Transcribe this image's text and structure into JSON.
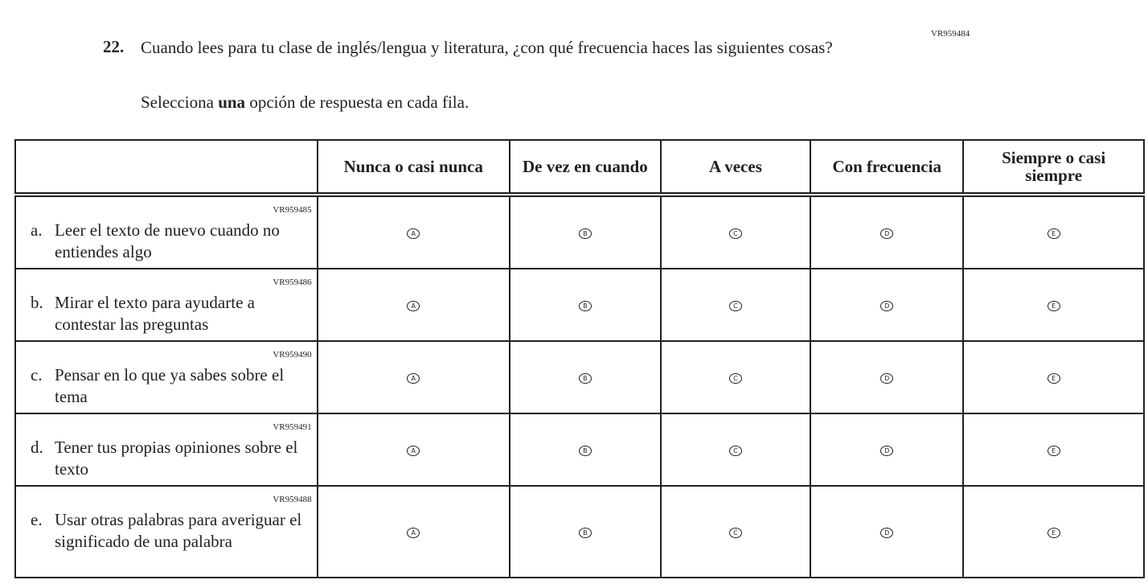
{
  "question": {
    "id": "VR959484",
    "number": "22.",
    "text": "Cuando lees para tu clase de inglés/lengua y literatura, ¿con qué frecuencia haces las siguientes cosas?",
    "instruction_pre": "Selecciona ",
    "instruction_bold": "una",
    "instruction_post": " opción de respuesta en cada fila."
  },
  "columns": [
    "Nunca o casi nunca",
    "De vez en cuando",
    "A veces",
    "Con frecuencia",
    "Siempre o casi siempre"
  ],
  "option_letters": [
    "A",
    "B",
    "C",
    "D",
    "E"
  ],
  "rows": [
    {
      "id": "VR959485",
      "letter": "a.",
      "text": "Leer el texto de nuevo cuando no entiendes algo"
    },
    {
      "id": "VR959486",
      "letter": "b.",
      "text": "Mirar el texto para ayudarte a contestar las preguntas"
    },
    {
      "id": "VR959490",
      "letter": "c.",
      "text": "Pensar en lo que ya sabes sobre el tema"
    },
    {
      "id": "VR959491",
      "letter": "d.",
      "text": "Tener tus propias opiniones sobre el texto"
    },
    {
      "id": "VR959488",
      "letter": "e.",
      "text": "Usar otras palabras para averiguar el significado de una palabra"
    }
  ]
}
